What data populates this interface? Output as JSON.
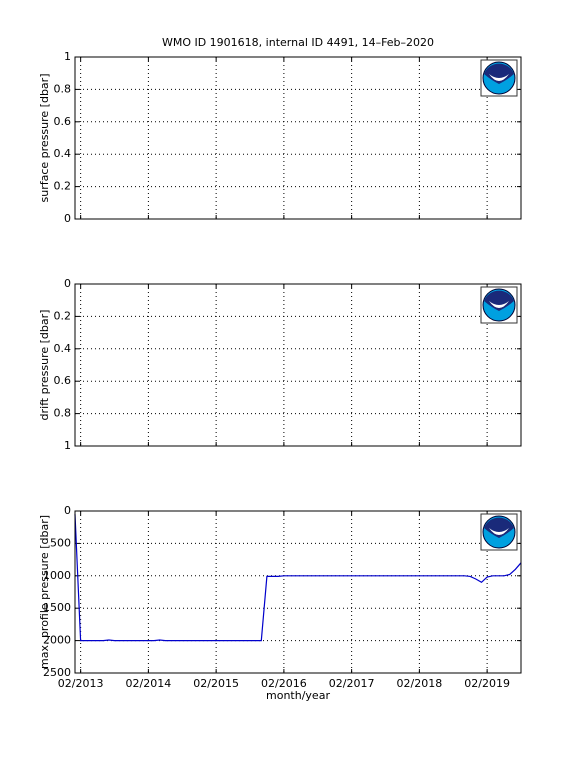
{
  "chart_data": [
    {
      "type": "line",
      "title": "WMO ID 1901618, internal ID 4491, 14–Feb–2020",
      "ylabel": "surface pressure [dbar]",
      "ylim": [
        0,
        1
      ],
      "yticks": [
        0,
        0.2,
        0.4,
        0.6,
        0.8,
        1
      ],
      "reversed": false,
      "grid": true
    },
    {
      "type": "line",
      "ylabel": "drift pressure [dbar]",
      "ylim": [
        0,
        1
      ],
      "yticks": [
        0,
        0.2,
        0.4,
        0.6,
        0.8,
        1
      ],
      "reversed": true,
      "grid": true
    },
    {
      "type": "line",
      "ylabel": "max. profile pressure [dbar]",
      "xlabel": "month/year",
      "ylim": [
        0,
        2500
      ],
      "yticks": [
        0,
        500,
        1000,
        1500,
        2000,
        2500
      ],
      "reversed": true,
      "grid": true,
      "xlim": [
        "01/2013",
        "08/2019"
      ],
      "xticks": [
        "02/2013",
        "02/2014",
        "02/2015",
        "02/2016",
        "02/2017",
        "02/2018",
        "02/2019"
      ],
      "x": [
        "01/2013",
        "02/2013",
        "03/2013",
        "04/2013",
        "05/2013",
        "06/2013",
        "07/2013",
        "08/2013",
        "09/2013",
        "10/2013",
        "11/2013",
        "12/2013",
        "01/2014",
        "02/2014",
        "03/2014",
        "04/2014",
        "05/2014",
        "06/2014",
        "07/2014",
        "08/2014",
        "09/2014",
        "10/2014",
        "11/2014",
        "12/2014",
        "01/2015",
        "02/2015",
        "03/2015",
        "04/2015",
        "05/2015",
        "06/2015",
        "07/2015",
        "08/2015",
        "09/2015",
        "10/2015",
        "11/2015",
        "12/2015",
        "01/2016",
        "02/2016",
        "03/2016",
        "04/2016",
        "05/2016",
        "06/2016",
        "07/2016",
        "08/2016",
        "09/2016",
        "10/2016",
        "11/2016",
        "12/2016",
        "01/2017",
        "02/2017",
        "03/2017",
        "04/2017",
        "05/2017",
        "06/2017",
        "07/2017",
        "08/2017",
        "09/2017",
        "10/2017",
        "11/2017",
        "12/2017",
        "01/2018",
        "02/2018",
        "03/2018",
        "04/2018",
        "05/2018",
        "06/2018",
        "07/2018",
        "08/2018",
        "09/2018",
        "10/2018",
        "11/2018",
        "12/2018",
        "01/2019",
        "02/2019",
        "03/2019",
        "04/2019",
        "05/2019",
        "06/2019",
        "07/2019",
        "08/2019"
      ],
      "series": [
        {
          "color": "#0000cc",
          "values": [
            50,
            2000,
            2000,
            2000,
            2000,
            2000,
            1990,
            2000,
            2000,
            2000,
            2000,
            2000,
            2000,
            2000,
            2000,
            1990,
            2000,
            2000,
            2000,
            2000,
            2000,
            2000,
            2000,
            2000,
            2000,
            2000,
            2000,
            2000,
            2000,
            2000,
            2000,
            2000,
            2000,
            2000,
            1010,
            1010,
            1010,
            1000,
            1000,
            1000,
            1000,
            1000,
            1000,
            1000,
            1000,
            1000,
            1000,
            1000,
            1000,
            1000,
            1000,
            1000,
            1000,
            1000,
            1000,
            1000,
            1000,
            1000,
            1000,
            1000,
            1000,
            1000,
            1000,
            1000,
            1000,
            1000,
            1000,
            1000,
            1000,
            1000,
            1010,
            1050,
            1100,
            1020,
            1000,
            1000,
            1000,
            980,
            900,
            800
          ]
        }
      ]
    }
  ]
}
